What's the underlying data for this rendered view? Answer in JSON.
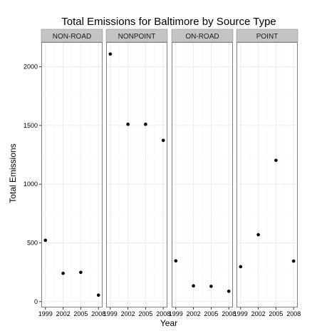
{
  "chart_data": {
    "type": "scatter",
    "title": "Total Emissions for Baltimore by Source Type",
    "xlabel": "Year",
    "ylabel": "Total Emissions",
    "x_ticks": [
      1999,
      2002,
      2005,
      2008
    ],
    "y_ticks": [
      0,
      500,
      1000,
      1500,
      2000
    ],
    "xlim": [
      1998.3,
      2008.7
    ],
    "ylim": [
      -50,
      2210
    ],
    "grid": true,
    "colors": {
      "strip_background": "#c4c4c4",
      "panel_border": "#7f7f7f",
      "grid_major": "#ebebeb",
      "grid_minor": "#f5f5f5",
      "point": "#000000"
    },
    "panels": [
      {
        "name": "NON-ROAD",
        "points": [
          {
            "x": 1999,
            "y": 522
          },
          {
            "x": 2002,
            "y": 241
          },
          {
            "x": 2005,
            "y": 249
          },
          {
            "x": 2008,
            "y": 55
          }
        ]
      },
      {
        "name": "NONPOINT",
        "points": [
          {
            "x": 1999,
            "y": 2108
          },
          {
            "x": 2002,
            "y": 1510
          },
          {
            "x": 2005,
            "y": 1510
          },
          {
            "x": 2008,
            "y": 1373
          }
        ]
      },
      {
        "name": "ON-ROAD",
        "points": [
          {
            "x": 1999,
            "y": 347
          },
          {
            "x": 2002,
            "y": 134
          },
          {
            "x": 2005,
            "y": 130
          },
          {
            "x": 2008,
            "y": 88
          }
        ]
      },
      {
        "name": "POINT",
        "points": [
          {
            "x": 1999,
            "y": 297
          },
          {
            "x": 2002,
            "y": 570
          },
          {
            "x": 2005,
            "y": 1203
          },
          {
            "x": 2008,
            "y": 345
          }
        ]
      }
    ]
  }
}
